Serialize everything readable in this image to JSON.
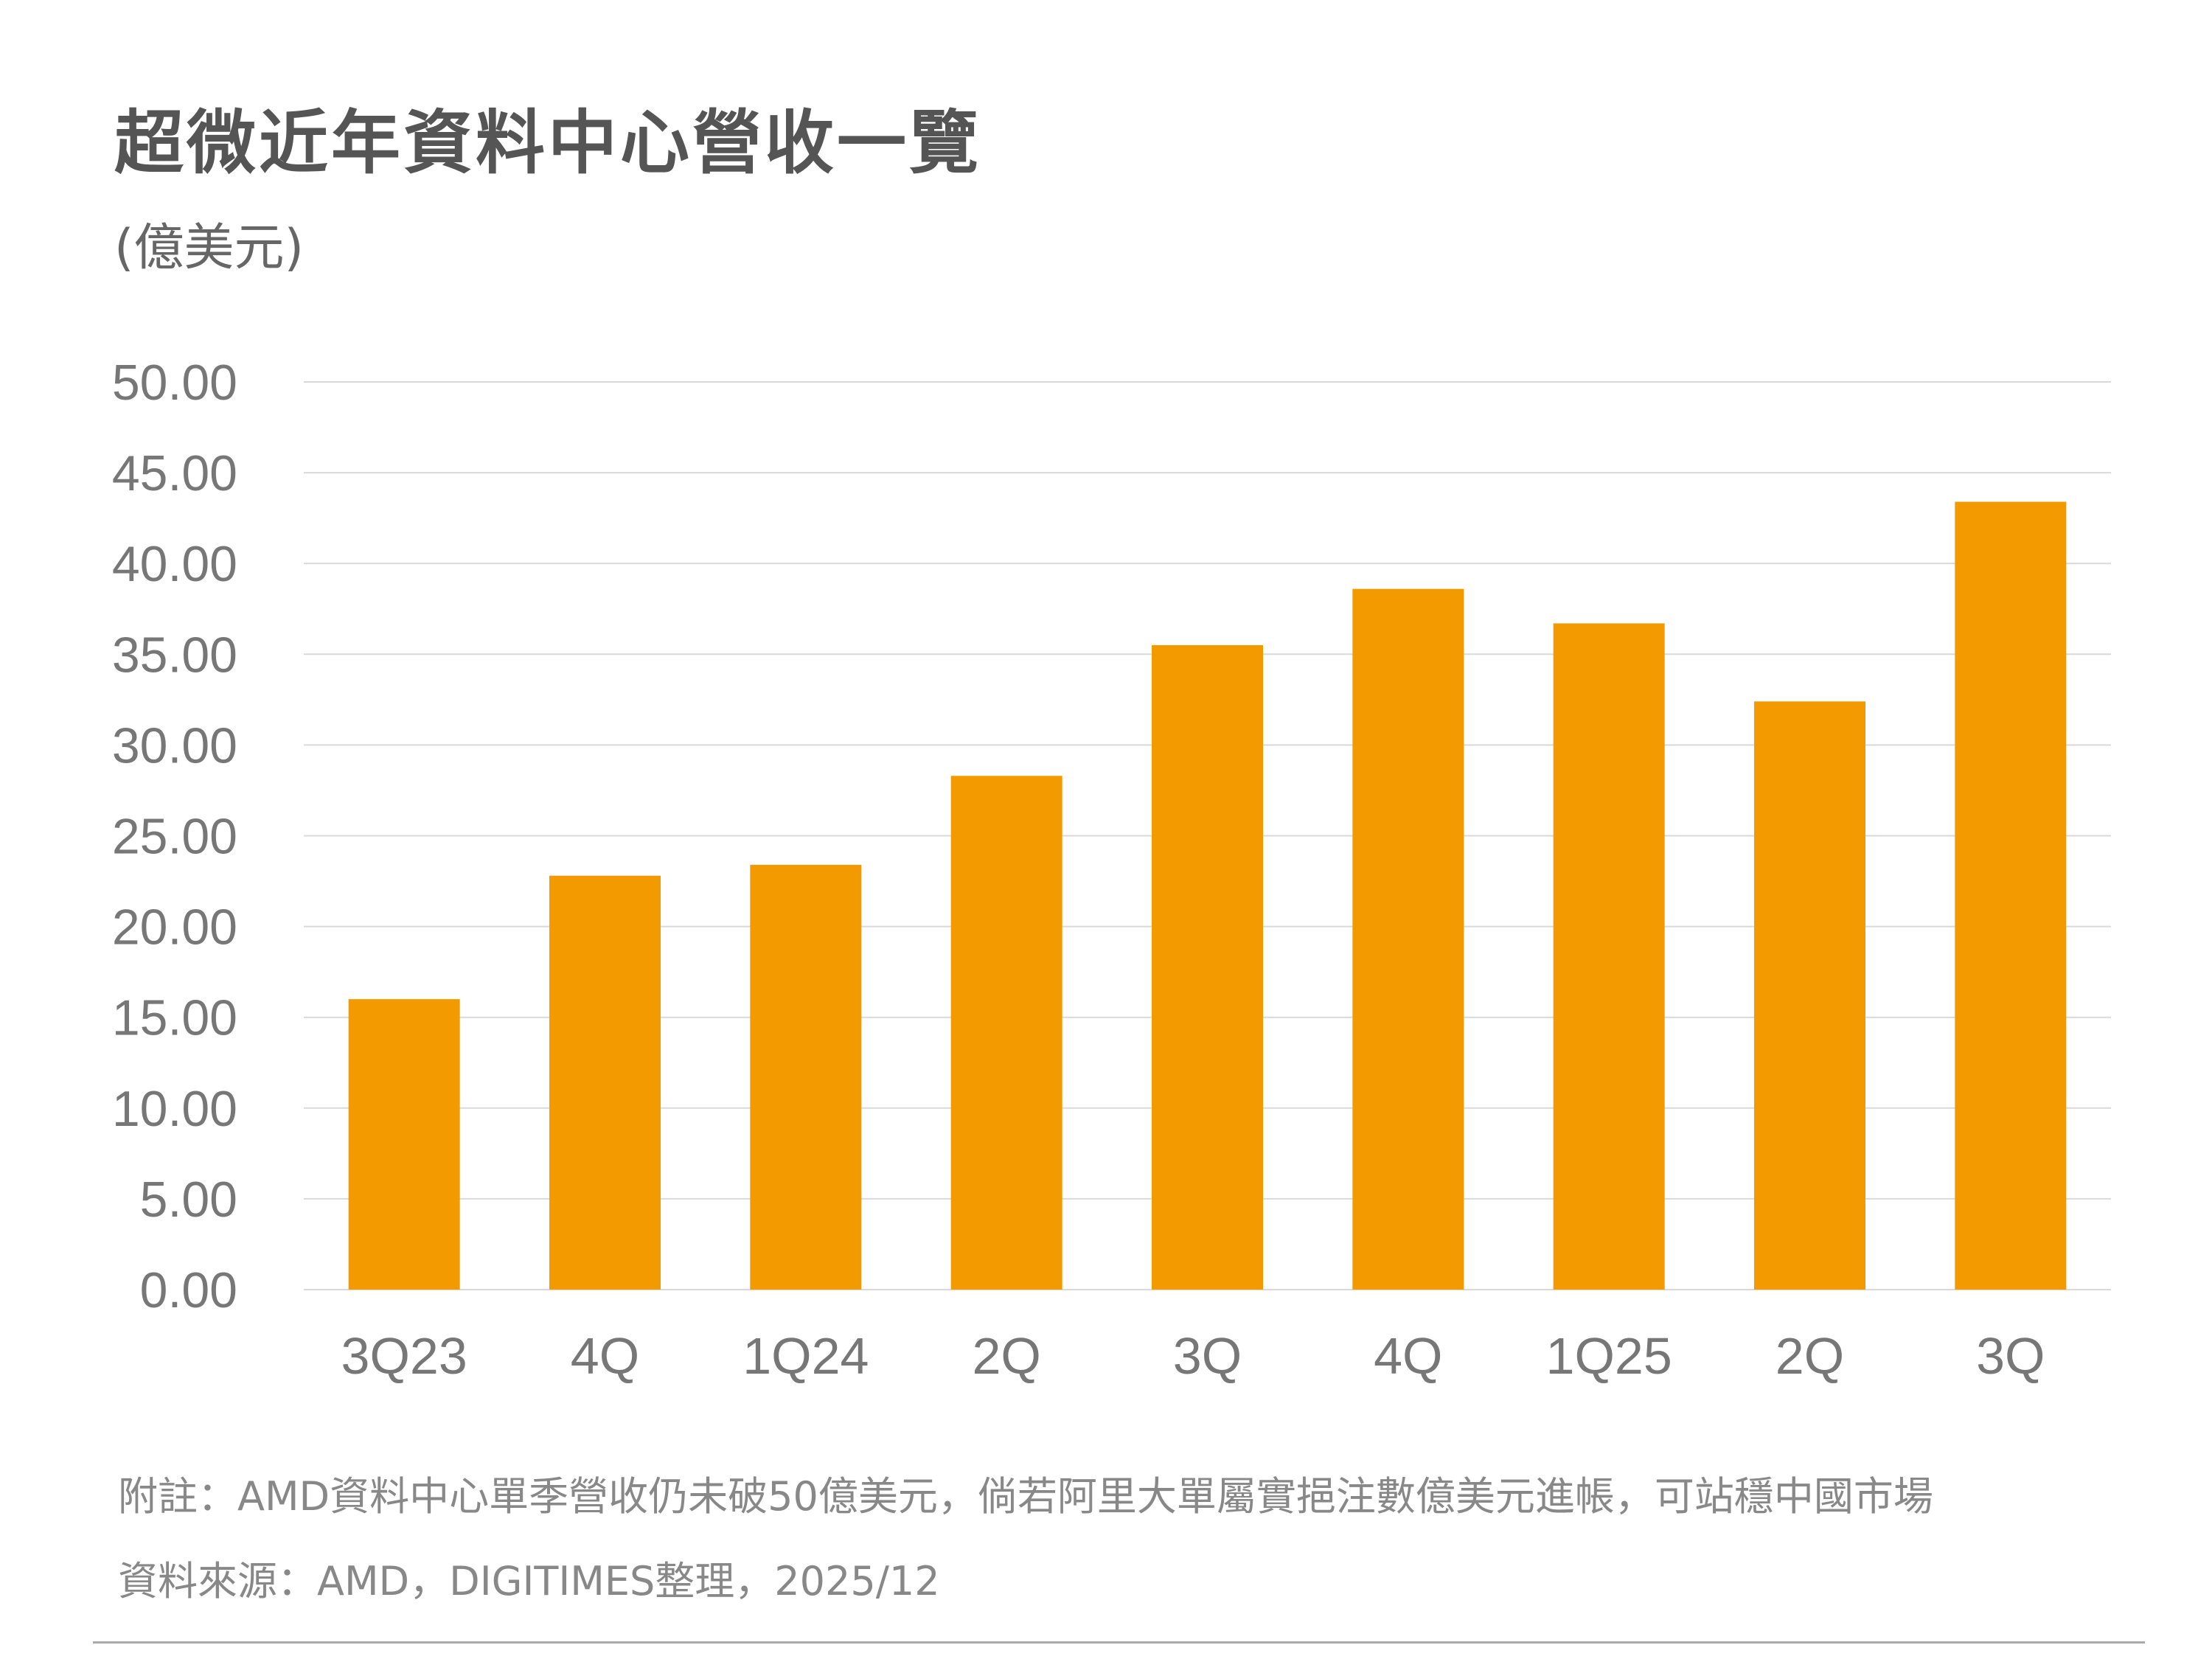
{
  "chart_data": {
    "type": "bar",
    "title": "超微近年資料中心營收一覽",
    "ylabel": "(億美元)",
    "xlabel": "",
    "categories": [
      "3Q23",
      "4Q",
      "1Q24",
      "2Q",
      "3Q",
      "4Q",
      "1Q25",
      "2Q",
      "3Q"
    ],
    "values": [
      16.0,
      22.8,
      23.4,
      28.3,
      35.5,
      38.6,
      36.7,
      32.4,
      43.4
    ],
    "ylim": [
      0,
      50
    ],
    "yticks": [
      "0.00",
      "5.00",
      "10.00",
      "15.00",
      "20.00",
      "25.00",
      "30.00",
      "35.00",
      "40.00",
      "45.00",
      "50.00"
    ],
    "grid": true,
    "bar_color": "#F39A00",
    "grid_color": "#D9D9D9"
  },
  "footnote": {
    "note": "附註：AMD資料中心單季營收仍未破50億美元，倘若阿里大單屬實挹注數億美元進帳，可站穩中國市場",
    "source": "資料來源：AMD，DIGITIMES整理，2025/12"
  }
}
